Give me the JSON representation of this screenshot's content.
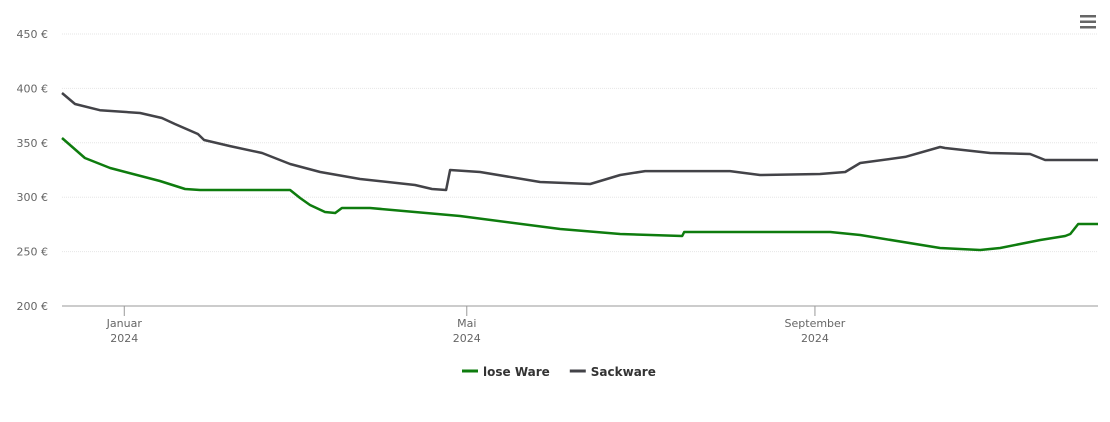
{
  "chart_data": {
    "type": "line",
    "xlim": [
      0,
      366
    ],
    "xticks": [
      {
        "value": 22,
        "label": "Januar 2024"
      },
      {
        "value": 143,
        "label": "Mai 2024"
      },
      {
        "value": 266,
        "label": "September 2024"
      }
    ],
    "ylim": [
      200,
      450
    ],
    "yticks": [
      {
        "value": 200,
        "label": "200 €"
      },
      {
        "value": 250,
        "label": "250 €"
      },
      {
        "value": 300,
        "label": "300 €"
      },
      {
        "value": 350,
        "label": "350 €"
      },
      {
        "value": 400,
        "label": "400 €"
      },
      {
        "value": 450,
        "label": "450 €"
      }
    ],
    "grid": true,
    "legend": "bottom",
    "series": [
      {
        "name": "lose Ware",
        "color": "#0e7c0e",
        "x": [
          0,
          8.1,
          17,
          34.6,
          43.5,
          48.8,
          80.6,
          84.1,
          87.6,
          92.9,
          96.5,
          98.9,
          108.8,
          140.6,
          176,
          197.2,
          219.1,
          219.8,
          271.4,
          282,
          310.2,
          324.4,
          331.4,
          345.6,
          354.4,
          356.2,
          359,
          366
        ],
        "values": [
          354.4,
          336,
          326.8,
          314.9,
          307.5,
          306.6,
          306.6,
          299.3,
          292.8,
          286.4,
          285.5,
          290.1,
          290.1,
          282.7,
          270.8,
          266.2,
          264.3,
          268,
          268,
          265.3,
          253.3,
          251.5,
          253.3,
          260.7,
          264.3,
          266.2,
          275.4,
          275.4
        ]
      },
      {
        "name": "Sackware",
        "color": "#434348",
        "x": [
          0,
          4.6,
          13.4,
          27.6,
          35.3,
          39.9,
          48,
          50.2,
          59.4,
          70.7,
          80.6,
          91.2,
          105.3,
          124.7,
          130.7,
          135.7,
          137.1,
          147.7,
          168.9,
          186.6,
          197.2,
          206,
          236,
          246.6,
          267.8,
          276.7,
          282,
          297.9,
          310.2,
          312,
          327.9,
          342,
          347.3,
          366
        ],
        "values": [
          395.8,
          385.7,
          380,
          377.4,
          372.8,
          367.3,
          358.1,
          352.6,
          347,
          340.6,
          330.5,
          323.2,
          316.7,
          311.2,
          307.5,
          306.6,
          325,
          323.2,
          314,
          312.1,
          320.4,
          324,
          324,
          320.4,
          321.3,
          323.2,
          331.4,
          337,
          346.1,
          345.2,
          340.6,
          339.7,
          334.2,
          334.2
        ]
      }
    ]
  }
}
